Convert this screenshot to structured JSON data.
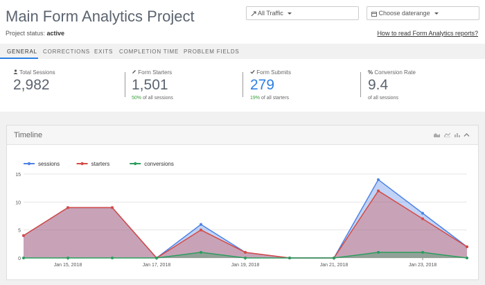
{
  "header": {
    "title": "Main Form Analytics Project",
    "status_label": "Project status:",
    "status_value": "active",
    "traffic_label": "All Traffic",
    "date_label": "Choose daterange",
    "help_link": "How to read Form Analytics reports?"
  },
  "tabs": [
    {
      "label": "GENERAL",
      "active": true
    },
    {
      "label": "CORRECTIONS"
    },
    {
      "label": "EXITS"
    },
    {
      "label": "COMPLETION TIME"
    },
    {
      "label": "PROBLEM FIELDS"
    }
  ],
  "stats": [
    {
      "label": "Total Sessions",
      "value": "2,982",
      "sub_pct": "",
      "sub_text": "",
      "icon": "user-icon"
    },
    {
      "label": "Form Starters",
      "value": "1,501",
      "sub_pct": "50%",
      "sub_text": " of all sessions",
      "icon": "pencil-icon"
    },
    {
      "label": "Form Submits",
      "value": "279",
      "sub_pct": "19%",
      "sub_text": " of all starters",
      "icon": "check-icon"
    },
    {
      "label": "Conversion Rate",
      "value": "9.4",
      "sub_pct": "",
      "sub_text": "of all sessions",
      "icon": "percent-icon"
    }
  ],
  "timeline": {
    "title": "Timeline"
  },
  "colors": {
    "sessions": "#4d82e6",
    "starters": "#d64a45",
    "conversions": "#2a9d5c",
    "accent": "#2d7fe3"
  },
  "chart_data": {
    "type": "area",
    "x": [
      "Jan 14, 2018",
      "Jan 15, 2018",
      "Jan 16, 2018",
      "Jan 17, 2018",
      "Jan 18, 2018",
      "Jan 19, 2018",
      "Jan 20, 2018",
      "Jan 21, 2018",
      "Jan 22, 2018",
      "Jan 23, 2018",
      "Jan 24, 2018"
    ],
    "tick_labels": [
      "Jan 15, 2018",
      "Jan 17, 2018",
      "Jan 19, 2018",
      "Jan 21, 2018",
      "Jan 23, 2018"
    ],
    "y_ticks": [
      0,
      5,
      10,
      15
    ],
    "ylim": [
      0,
      15
    ],
    "series": [
      {
        "name": "sessions",
        "values": [
          4,
          9,
          9,
          0,
          6,
          1,
          0,
          0,
          14,
          8,
          2
        ]
      },
      {
        "name": "starters",
        "values": [
          4,
          9,
          9,
          0,
          5,
          1,
          0,
          0,
          12,
          7,
          2
        ]
      },
      {
        "name": "conversions",
        "values": [
          0,
          0,
          0,
          0,
          1,
          0,
          0,
          0,
          1,
          1,
          0
        ]
      }
    ],
    "legend_position": "top-left",
    "grid": true
  }
}
